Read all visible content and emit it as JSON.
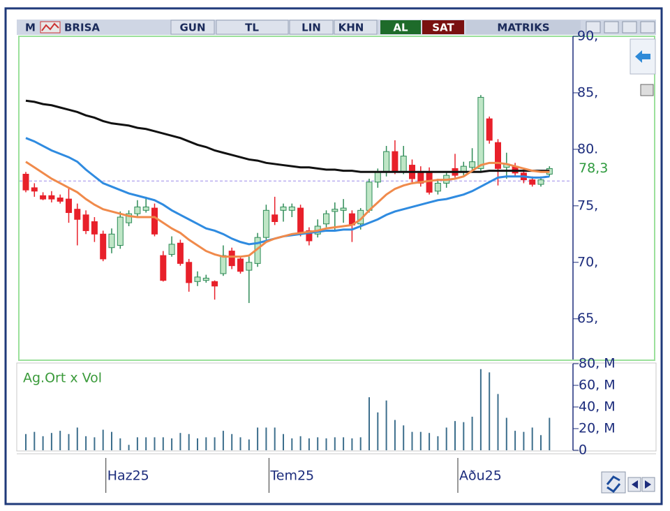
{
  "toolbar": {
    "logo": "M",
    "symbol": "BRISA",
    "buttons": [
      "GUN",
      "TL",
      "LIN",
      "KHN"
    ],
    "buy": "AL",
    "sell": "SAT",
    "brand": "MATRIKS"
  },
  "chart_data": [
    {
      "type": "candlestick",
      "categories": [
        null,
        null,
        null,
        null,
        null,
        null,
        null,
        null,
        null,
        "Haz25",
        null,
        null,
        null,
        null,
        null,
        null,
        null,
        null,
        null,
        null,
        null,
        null,
        null,
        null,
        null,
        null,
        null,
        null,
        "Tem25",
        null,
        null,
        null,
        null,
        null,
        null,
        null,
        null,
        null,
        null,
        null,
        null,
        null,
        null,
        null,
        null,
        null,
        null,
        null,
        null,
        null,
        "Aðu25",
        null,
        null,
        null,
        null,
        null,
        null,
        null,
        null,
        null,
        null,
        null
      ],
      "open": [
        77.8,
        76.6,
        75.9,
        75.9,
        75.7,
        75.6,
        74.7,
        74.2,
        73.6,
        72.5,
        71.3,
        71.5,
        73.5,
        74.3,
        74.6,
        74.8,
        70.6,
        70.7,
        71.7,
        70,
        68.3,
        68.4,
        68.3,
        69,
        71,
        70.3,
        69.3,
        69.9,
        72.2,
        74.2,
        74.6,
        74.6,
        74.8,
        72.8,
        72.5,
        73.4,
        74.5,
        74.6,
        74.3,
        73.4,
        74.6,
        77.1,
        78,
        79.8,
        78,
        78.6,
        78,
        78,
        76.3,
        77,
        78.3,
        78,
        78.4,
        78.3,
        82.7,
        80.6,
        78.4,
        78.5,
        77.9,
        77.3,
        76.9,
        77.8
      ],
      "high": [
        78,
        77,
        76.2,
        76.3,
        76,
        76.6,
        75.2,
        74.6,
        74,
        72.8,
        73,
        74.5,
        74.6,
        75.5,
        75.8,
        75.2,
        71,
        72.3,
        72,
        70.3,
        69.2,
        68.9,
        68.4,
        71.5,
        71.3,
        70.5,
        70.5,
        72.6,
        75.1,
        75.8,
        75.2,
        75.2,
        75.1,
        73.1,
        73.8,
        74.6,
        75.3,
        75.6,
        74.6,
        74.8,
        77.4,
        78.3,
        80.3,
        80.8,
        80.3,
        79.1,
        78.5,
        78.4,
        77.4,
        78,
        79.6,
        78.9,
        80.1,
        84.8,
        82.9,
        80.9,
        79.7,
        78.8,
        78.2,
        77.6,
        77.6,
        78.5
      ],
      "low": [
        76.2,
        75.8,
        75.5,
        75.3,
        75.2,
        73.5,
        71.5,
        72.5,
        71.8,
        70.1,
        70.8,
        71.2,
        73.2,
        74.1,
        74.4,
        72.3,
        68.3,
        70.5,
        69.7,
        67.4,
        67.9,
        68.2,
        66.7,
        68.8,
        69.4,
        69,
        66.4,
        69.6,
        72,
        73.3,
        73.6,
        74,
        72.3,
        71.5,
        72.2,
        73.1,
        72.8,
        73.5,
        71.8,
        72.9,
        74.4,
        76.6,
        77.6,
        77.8,
        77.8,
        76.9,
        76.7,
        76,
        76,
        76.6,
        77.5,
        77.7,
        78.1,
        78,
        80.5,
        76.8,
        77.4,
        77.6,
        77,
        76.7,
        76.7,
        77.6
      ],
      "close": [
        76.4,
        76.3,
        75.6,
        75.6,
        75.4,
        74.4,
        73.8,
        72.8,
        72.5,
        70.3,
        72.5,
        74,
        74.3,
        74.9,
        74.9,
        72.5,
        68.4,
        71.6,
        69.9,
        68.2,
        68.7,
        68.6,
        67.9,
        70.6,
        69.7,
        69.2,
        70,
        72.2,
        74.6,
        73.6,
        74.9,
        74.9,
        72.6,
        71.9,
        73.2,
        74.3,
        74.7,
        74.8,
        73.3,
        74.6,
        77.1,
        78,
        79.8,
        78,
        79.4,
        77.4,
        77,
        76.2,
        77,
        77.7,
        77.7,
        78.5,
        78.9,
        84.6,
        80.8,
        78.3,
        78.7,
        77.9,
        77.3,
        76.9,
        77.3,
        78.3
      ],
      "up_color": "#2e8b57",
      "down_color": "#e8202a",
      "series": [
        {
          "color": "#111111",
          "values": [
            84.3,
            84.2,
            84.0,
            83.9,
            83.7,
            83.5,
            83.3,
            83.0,
            82.8,
            82.5,
            82.3,
            82.2,
            82.1,
            81.9,
            81.8,
            81.6,
            81.4,
            81.2,
            81.0,
            80.7,
            80.4,
            80.2,
            79.9,
            79.7,
            79.5,
            79.3,
            79.1,
            79.0,
            78.8,
            78.7,
            78.6,
            78.5,
            78.4,
            78.4,
            78.3,
            78.2,
            78.2,
            78.1,
            78.1,
            78.0,
            78.0,
            78.0,
            78.0,
            78.0,
            78.0,
            78.0,
            78.0,
            78.0,
            78.0,
            78.0,
            78.0,
            78.0,
            78.0,
            78.0,
            78.1,
            78.1,
            78.1,
            78.1,
            78.1,
            78.1,
            78.1,
            78.1
          ]
        },
        {
          "color": "#2f8be0",
          "values": [
            81.0,
            80.7,
            80.3,
            79.9,
            79.6,
            79.3,
            78.9,
            78.2,
            77.6,
            77.0,
            76.7,
            76.4,
            76.1,
            75.9,
            75.7,
            75.5,
            75.1,
            74.6,
            74.2,
            73.8,
            73.4,
            73.0,
            72.8,
            72.5,
            72.1,
            71.8,
            71.6,
            71.7,
            71.9,
            72.1,
            72.3,
            72.4,
            72.5,
            72.6,
            72.7,
            72.8,
            72.8,
            72.9,
            72.9,
            73.2,
            73.5,
            73.8,
            74.2,
            74.5,
            74.7,
            74.9,
            75.1,
            75.3,
            75.5,
            75.6,
            75.8,
            76.0,
            76.3,
            76.7,
            77.1,
            77.5,
            77.6,
            77.6,
            77.6,
            77.5,
            77.5,
            77.6
          ]
        },
        {
          "color": "#f08a4b",
          "values": [
            78.9,
            78.4,
            77.9,
            77.4,
            77.0,
            76.6,
            76.2,
            75.6,
            75.1,
            74.7,
            74.5,
            74.3,
            74.1,
            74.0,
            74.0,
            74.0,
            73.5,
            73.0,
            72.6,
            72.0,
            71.5,
            71.0,
            70.7,
            70.5,
            70.5,
            70.5,
            70.6,
            71.2,
            71.8,
            72.1,
            72.3,
            72.5,
            72.6,
            72.7,
            72.8,
            73.0,
            73.1,
            73.2,
            73.3,
            73.8,
            74.6,
            75.3,
            76.0,
            76.5,
            76.8,
            77.0,
            77.1,
            77.2,
            77.3,
            77.3,
            77.4,
            77.6,
            78.1,
            78.6,
            78.8,
            78.8,
            78.7,
            78.5,
            78.3,
            78.1,
            78.0,
            78.0
          ]
        }
      ],
      "ylim": [
        61.4,
        90
      ],
      "yticks": [
        {
          "value": 65,
          "label": "65,"
        },
        {
          "value": 70,
          "label": "70,"
        },
        {
          "value": 75,
          "label": "75,"
        },
        {
          "value": 80,
          "label": "80."
        },
        {
          "value": 85,
          "label": "85,"
        },
        {
          "value": 90,
          "label": "90,"
        }
      ],
      "last_value": {
        "value": 78.3,
        "label": "78,3"
      },
      "ref_line": 77.2
    },
    {
      "type": "bar",
      "title": "Ag.Ort x Vol",
      "color": "#3c6e8c",
      "values": [
        15,
        17,
        13,
        16,
        18,
        15,
        21,
        13,
        12,
        19,
        17,
        11,
        5,
        12,
        12,
        12,
        12,
        11,
        16,
        15,
        11,
        12,
        12,
        18,
        15,
        12,
        10,
        21,
        21,
        21,
        15,
        11,
        13,
        11,
        12,
        11,
        12,
        12,
        11,
        12,
        49,
        35,
        46,
        28,
        23,
        17,
        17,
        16,
        13,
        21,
        27,
        26,
        31,
        75,
        72,
        52,
        30,
        18,
        17,
        21,
        14,
        30
      ],
      "ylim": [
        0,
        80
      ],
      "yticks": [
        0,
        {
          "value": 20,
          "label": "20, M"
        },
        {
          "value": 40,
          "label": "40, M"
        },
        {
          "value": 60,
          "label": "60, M"
        },
        {
          "value": 80,
          "label": "80, M"
        }
      ]
    }
  ]
}
